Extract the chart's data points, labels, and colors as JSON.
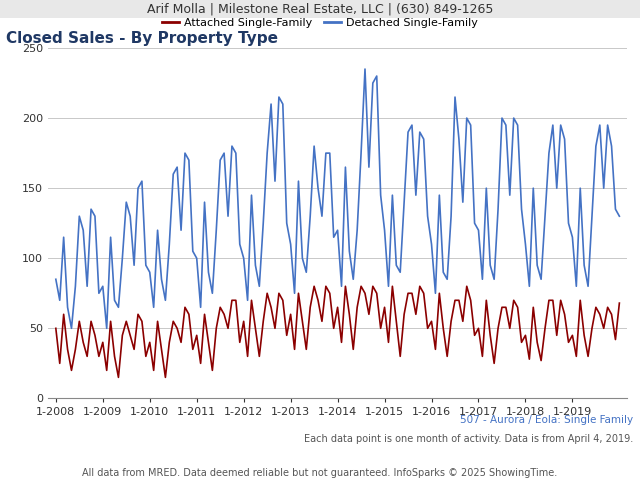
{
  "header_text": "Arif Molla | Milestone Real Estate, LLC | (630) 849-1265",
  "title": "Closed Sales - By Property Type",
  "subtitle_right": "507 - Aurora / Eola: Single Family",
  "footnote1": "Each data point is one month of activity. Data is from April 4, 2019.",
  "footnote2": "All data from MRED. Data deemed reliable but not guaranteed. InfoSparks © 2025 ShowingTime.",
  "legend_attached": "Attached Single-Family",
  "legend_detached": "Detached Single-Family",
  "color_attached": "#8B0000",
  "color_detached": "#4472C4",
  "ylim": [
    0,
    250
  ],
  "yticks": [
    0,
    50,
    100,
    150,
    200,
    250
  ],
  "attached": [
    50,
    25,
    60,
    35,
    20,
    35,
    55,
    40,
    30,
    55,
    45,
    30,
    40,
    20,
    55,
    30,
    15,
    45,
    55,
    45,
    35,
    60,
    55,
    30,
    40,
    20,
    55,
    35,
    15,
    40,
    55,
    50,
    40,
    65,
    60,
    35,
    45,
    25,
    60,
    40,
    20,
    50,
    65,
    60,
    50,
    70,
    70,
    40,
    55,
    30,
    70,
    50,
    30,
    55,
    75,
    65,
    50,
    75,
    70,
    45,
    60,
    35,
    75,
    55,
    35,
    65,
    80,
    70,
    55,
    80,
    75,
    50,
    65,
    40,
    80,
    60,
    35,
    65,
    80,
    75,
    60,
    80,
    75,
    50,
    65,
    40,
    80,
    55,
    30,
    60,
    75,
    75,
    60,
    80,
    75,
    50,
    55,
    35,
    75,
    50,
    30,
    55,
    70,
    70,
    55,
    80,
    70,
    45,
    50,
    30,
    70,
    45,
    25,
    50,
    65,
    65,
    50,
    70,
    65,
    40,
    45,
    28,
    65,
    40,
    27,
    50,
    70,
    70,
    45,
    70,
    60,
    40,
    45,
    30,
    70,
    45,
    30,
    50,
    65,
    60,
    50,
    65,
    60,
    42,
    68
  ],
  "detached": [
    85,
    70,
    115,
    65,
    50,
    80,
    130,
    120,
    80,
    135,
    130,
    75,
    80,
    50,
    115,
    70,
    65,
    100,
    140,
    130,
    95,
    150,
    155,
    95,
    90,
    65,
    120,
    85,
    70,
    110,
    160,
    165,
    120,
    175,
    170,
    105,
    100,
    65,
    140,
    90,
    75,
    120,
    170,
    175,
    130,
    180,
    175,
    110,
    100,
    70,
    145,
    95,
    80,
    125,
    175,
    210,
    155,
    215,
    210,
    125,
    110,
    75,
    155,
    100,
    90,
    130,
    180,
    150,
    130,
    175,
    175,
    115,
    120,
    80,
    165,
    105,
    85,
    120,
    175,
    235,
    165,
    225,
    230,
    145,
    120,
    80,
    145,
    95,
    90,
    140,
    190,
    195,
    145,
    190,
    185,
    130,
    110,
    75,
    145,
    90,
    85,
    130,
    215,
    185,
    140,
    200,
    195,
    125,
    120,
    85,
    150,
    95,
    85,
    135,
    200,
    195,
    145,
    200,
    195,
    135,
    110,
    80,
    150,
    95,
    85,
    130,
    175,
    195,
    150,
    195,
    185,
    125,
    115,
    80,
    150,
    95,
    80,
    130,
    180,
    195,
    150,
    195,
    180,
    135,
    130
  ],
  "x_tick_labels": [
    "1-2008",
    "1-2009",
    "1-2010",
    "1-2011",
    "1-2012",
    "1-2013",
    "1-2014",
    "1-2015",
    "1-2016",
    "1-2017",
    "1-2018",
    "1-2019"
  ],
  "header_bg": "#E8E8E8",
  "plot_bg": "#FFFFFF",
  "grid_color": "#C8C8C8",
  "title_color": "#1F3864",
  "header_fontsize": 9,
  "title_fontsize": 11,
  "legend_fontsize": 8,
  "tick_fontsize": 8,
  "footer_fontsize": 7.5,
  "footnote_fontsize": 7
}
